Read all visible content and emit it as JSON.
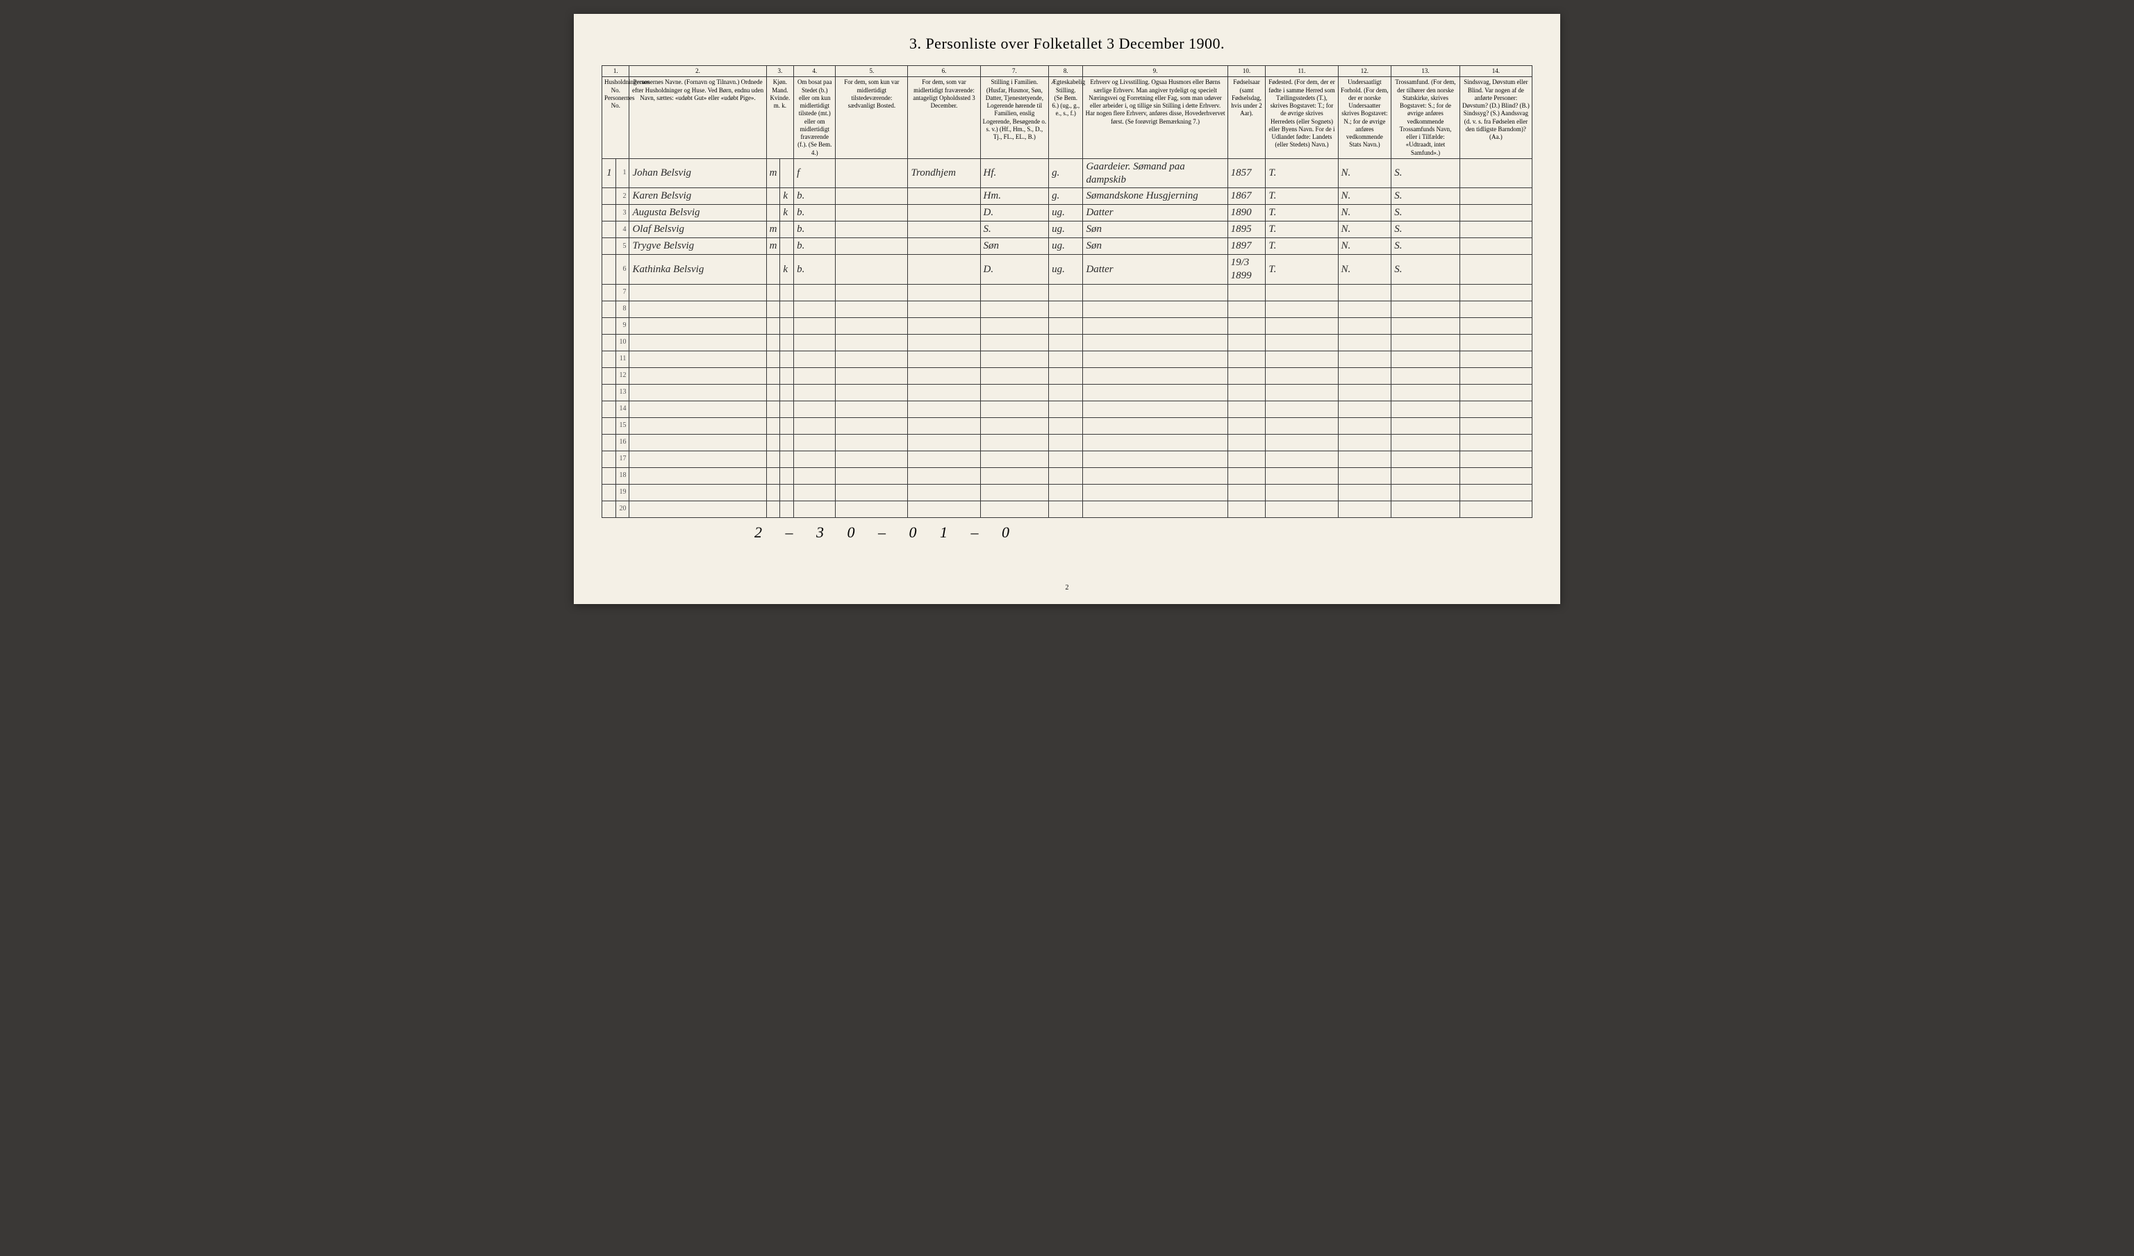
{
  "title": "3.  Personliste over Folketallet 3 December 1900.",
  "page_number": "2",
  "tally": "2 – 3   0 – 0   1 – 0",
  "colors": {
    "page_bg": "#f4f0e6",
    "border": "#3a3a3a",
    "ink": "#2b2b2b",
    "backdrop": "#3a3836"
  },
  "columns": [
    {
      "num": "1.",
      "head": "Husholdningernes No.\nPersonernes No."
    },
    {
      "num": "2.",
      "head": "Personernes Navne.\n(Fornavn og Tilnavn.)\nOrdnede efter Husholdninger og Huse.\nVed Børn, endnu uden Navn, sættes: «udøbt Gut» eller «udøbt Pige»."
    },
    {
      "num": "3.",
      "head": "Kjøn.\nMand.  Kvinde.\nm.   k."
    },
    {
      "num": "4.",
      "head": "Om bosat paa Stedet (b.) eller om kun midlertidigt tilstede (mt.) eller om midlertidigt fraværende (f.).\n(Se Bem. 4.)"
    },
    {
      "num": "5.",
      "head": "For dem, som kun var midlertidigt tilstedeværende:\nsædvanligt Bosted."
    },
    {
      "num": "6.",
      "head": "For dem, som var midlertidigt fraværende:\nantageligt Opholdssted 3 December."
    },
    {
      "num": "7.",
      "head": "Stilling i Familien.\n(Husfar, Husmor, Søn, Datter, Tjenestetyende, Logerende hørende til Familien, enslig Logerende, Besøgende o. s. v.)\n(Hf., Hm., S., D., Tj., FL., EL., B.)"
    },
    {
      "num": "8.",
      "head": "Ægteskabelig Stilling.\n(Se Bem. 6.)\n(ug., g., e., s., f.)"
    },
    {
      "num": "9.",
      "head": "Erhverv og Livsstilling.\nOgsaa Husmors eller Børns særlige Erhverv.\nMan angiver tydeligt og specielt Næringsvei og Forretning eller Fag, som man udøver eller arbeider i, og tillige sin Stilling i dette Erhverv.\nHar nogen flere Erhverv, anføres disse, Hovederhvervet først.\n(Se forøvrigt Bemærkning 7.)"
    },
    {
      "num": "10.",
      "head": "Fødselsaar\n(samt Fødselsdag, hvis under 2 Aar)."
    },
    {
      "num": "11.",
      "head": "Fødested.\n(For dem, der er fødte i samme Herred som Tællingsstedets (T.), skrives Bogstavet: T.; for de øvrige skrives Herredets (eller Sognets) eller Byens Navn. For de i Udlandet fødte: Landets (eller Stedets) Navn.)"
    },
    {
      "num": "12.",
      "head": "Undersaatligt Forhold.\n(For dem, der er norske Undersaatter skrives Bogstavet: N.; for de øvrige anføres vedkommende Stats Navn.)"
    },
    {
      "num": "13.",
      "head": "Trossamfund.\n(For dem, der tilhører den norske Statskirke, skrives Bogstavet: S.; for de øvrige anføres vedkommende Trossamfunds Navn, eller i Tilfælde: «Udtraadt, intet Samfund».)"
    },
    {
      "num": "14.",
      "head": "Sindssvag, Døvstum eller Blind.\nVar nogen af de anførte Personer:\nDøvstum? (D.)\nBlind? (B.)\nSindssyg? (S.)\nAandssvag (d. v. s. fra Fødselen eller den tidligste Barndom)? (Aa.)"
    }
  ],
  "rows": [
    {
      "hh": "1",
      "no": "1",
      "name": "Johan Belsvig",
      "sex_m": "m",
      "sex_k": "",
      "res": "f",
      "col5": "",
      "col6": "Trondhjem",
      "fam": "Hf.",
      "mar": "g.",
      "occ": "Gaardeier.\nSømand paa dampskib",
      "year": "1857",
      "birthplace": "T.",
      "nat": "N.",
      "faith": "S.",
      "dis": ""
    },
    {
      "hh": "",
      "no": "2",
      "name": "Karen Belsvig",
      "sex_m": "",
      "sex_k": "k",
      "res": "b.",
      "col5": "",
      "col6": "",
      "fam": "Hm.",
      "mar": "g.",
      "occ": "Sømandskone  Husgjerning",
      "year": "1867",
      "birthplace": "T.",
      "nat": "N.",
      "faith": "S.",
      "dis": ""
    },
    {
      "hh": "",
      "no": "3",
      "name": "Augusta Belsvig",
      "sex_m": "",
      "sex_k": "k",
      "res": "b.",
      "col5": "",
      "col6": "",
      "fam": "D.",
      "mar": "ug.",
      "occ": "Datter",
      "year": "1890",
      "birthplace": "T.",
      "nat": "N.",
      "faith": "S.",
      "dis": ""
    },
    {
      "hh": "",
      "no": "4",
      "name": "Olaf Belsvig",
      "sex_m": "m",
      "sex_k": "",
      "res": "b.",
      "col5": "",
      "col6": "",
      "fam": "S.",
      "mar": "ug.",
      "occ": "Søn",
      "year": "1895",
      "birthplace": "T.",
      "nat": "N.",
      "faith": "S.",
      "dis": ""
    },
    {
      "hh": "",
      "no": "5",
      "name": "Trygve Belsvig",
      "sex_m": "m",
      "sex_k": "",
      "res": "b.",
      "col5": "",
      "col6": "",
      "fam": "Søn",
      "mar": "ug.",
      "occ": "Søn",
      "year": "1897",
      "birthplace": "T.",
      "nat": "N.",
      "faith": "S.",
      "dis": ""
    },
    {
      "hh": "",
      "no": "6",
      "name": "Kathinka Belsvig",
      "sex_m": "",
      "sex_k": "k",
      "res": "b.",
      "col5": "",
      "col6": "",
      "fam": "D.",
      "mar": "ug.",
      "occ": "Datter",
      "year": "19/3 1899",
      "birthplace": "T.",
      "nat": "N.",
      "faith": "S.",
      "dis": ""
    }
  ],
  "blank_rows_from": 7,
  "blank_rows_to": 20
}
